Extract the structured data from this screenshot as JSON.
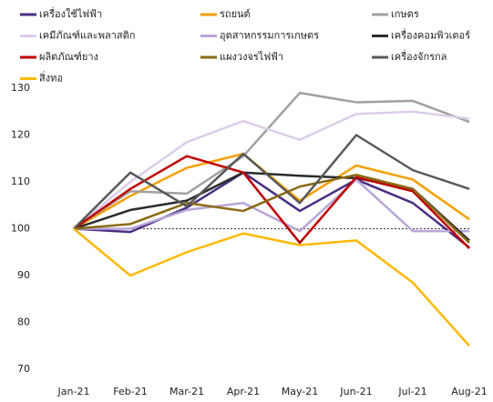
{
  "chart_data": {
    "type": "line",
    "categories": [
      "Jan-21",
      "Feb-21",
      "Mar-21",
      "Apr-21",
      "May-21",
      "Jun-21",
      "Jul-21",
      "Aug-21"
    ],
    "series": [
      {
        "name": "เครื่องใช้ไฟฟ้า",
        "color": "#4b2e83",
        "values": [
          100,
          99.3,
          104.5,
          112,
          103.8,
          110.5,
          105.5,
          96
        ]
      },
      {
        "name": "รถยนต์",
        "color": "#f5a000",
        "values": [
          100,
          107,
          113,
          116,
          106,
          113.5,
          110.5,
          102
        ]
      },
      {
        "name": "เกษตร",
        "color": "#a0a0a0",
        "values": [
          100,
          108,
          107.5,
          115.5,
          129,
          127,
          127.3,
          122.8
        ]
      },
      {
        "name": "เคมีภัณฑ์และพลาสติก",
        "color": "#dccdea",
        "values": [
          100,
          110,
          118.5,
          123,
          119,
          124.5,
          125,
          123.5
        ]
      },
      {
        "name": "อุตสาหกรรมการเกษตร",
        "color": "#b9a5d8",
        "values": [
          100,
          100,
          104,
          105.5,
          99.5,
          110.5,
          99.5,
          99.5
        ]
      },
      {
        "name": "เครื่องคอมพิวเตอร์",
        "color": "#2b2b2b",
        "values": [
          100,
          104,
          106,
          112,
          111.3,
          110.8,
          108.5,
          97.5
        ]
      },
      {
        "name": "ผลิตภัณฑ์ยาง",
        "color": "#c00000",
        "values": [
          100,
          108.5,
          115.5,
          112,
          97,
          111,
          108,
          95.8
        ]
      },
      {
        "name": "แผงวงจรไฟฟ้า",
        "color": "#8b6a14",
        "values": [
          100,
          101,
          105.5,
          103.8,
          109,
          111.5,
          108.5,
          97
        ]
      },
      {
        "name": "เครื่องจักรกล",
        "color": "#595959",
        "values": [
          100,
          112,
          104.8,
          116,
          105.5,
          120,
          112.5,
          108.5
        ]
      },
      {
        "name": "สิ่งทอ",
        "color": "#ffb800",
        "values": [
          100,
          90,
          95,
          99,
          96.5,
          97.5,
          88.5,
          75
        ]
      }
    ],
    "ylim": [
      70,
      130
    ],
    "yticks": [
      70,
      80,
      90,
      100,
      110,
      120,
      130
    ],
    "reference_line": 100,
    "grid": false
  }
}
